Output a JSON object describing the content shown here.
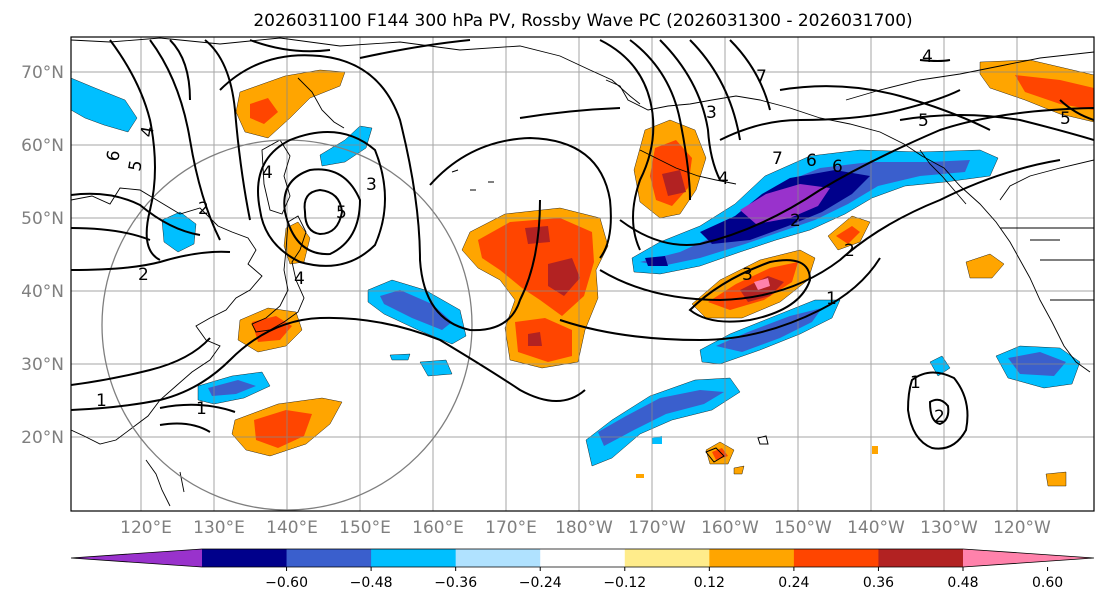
{
  "title": "2026031100 F144 300 hPa PV, Rossby Wave PC (2026031300 - 2026031700)",
  "lat_labels": [
    "70°N",
    "60°N",
    "50°N",
    "40°N",
    "30°N",
    "20°N"
  ],
  "lon_labels": [
    "120°E",
    "130°E",
    "140°E",
    "150°E",
    "160°E",
    "170°E",
    "180°W",
    "170°W",
    "160°W",
    "150°W",
    "140°W",
    "130°W",
    "120°W"
  ],
  "colorbar": {
    "tick_labels": [
      "−0.60",
      "−0.48",
      "−0.36",
      "−0.24",
      "−0.12",
      "0.12",
      "0.24",
      "0.36",
      "0.48",
      "0.60"
    ],
    "colors": [
      "#9932cc",
      "#00008b",
      "#3a5fcd",
      "#00bfff",
      "#b0e2ff",
      "#ffffff",
      "#ffec8b",
      "#ffa500",
      "#ff4500",
      "#b22222",
      "#ff82ab"
    ]
  },
  "contour_labels": [
    "6",
    "5",
    "4",
    "2",
    "4",
    "5",
    "3",
    "2",
    "1",
    "1",
    "7",
    "3",
    "5",
    "4",
    "6",
    "7",
    "5",
    "6",
    "4",
    "2",
    "2",
    "3",
    "1",
    "1",
    "2",
    "4"
  ]
}
